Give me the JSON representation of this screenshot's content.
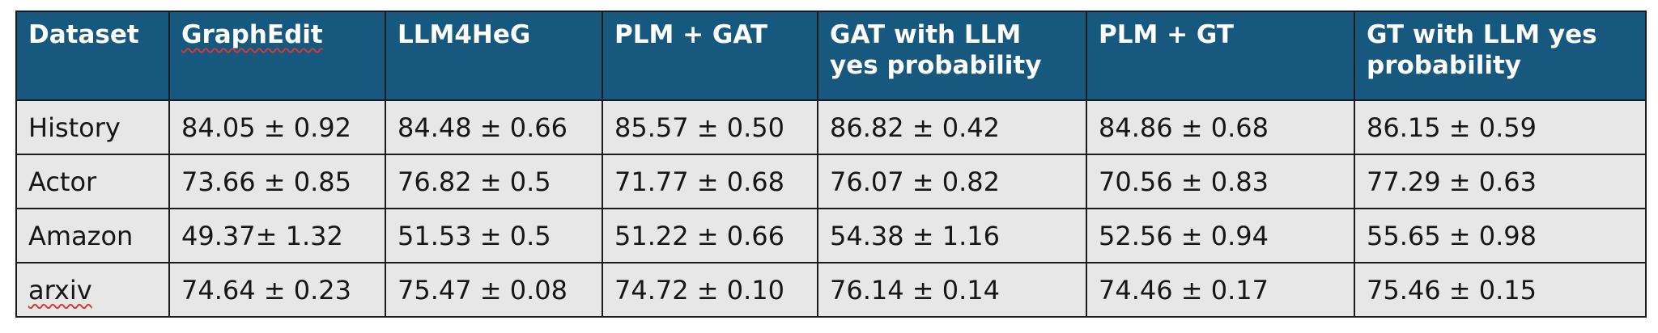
{
  "table": {
    "headers": [
      "Dataset",
      "GraphEdit",
      "LLM4HeG",
      "PLM + GAT",
      "GAT with LLM yes probability",
      "PLM + GT",
      "GT with LLM yes probability"
    ],
    "rows": [
      [
        "History",
        "84.05 ± 0.92",
        "84.48 ± 0.66",
        "85.57 ± 0.50",
        "86.82 ± 0.42",
        "84.86 ± 0.68",
        "86.15 ± 0.59"
      ],
      [
        "Actor",
        "73.66 ± 0.85",
        "76.82 ± 0.5",
        "71.77 ± 0.68",
        "76.07 ± 0.82",
        "70.56 ± 0.83",
        "77.29 ± 0.63"
      ],
      [
        "Amazon",
        "49.37± 1.32",
        "51.53 ± 0.5",
        "51.22 ± 0.66",
        "54.38 ± 1.16",
        "52.56 ± 0.94",
        "55.65 ± 0.98"
      ],
      [
        "arxiv",
        "74.64 ± 0.23",
        "75.47 ± 0.08",
        "74.72 ± 0.10",
        "76.14 ± 0.14",
        "74.46 ± 0.17",
        "75.46 ± 0.15"
      ]
    ]
  },
  "colors": {
    "header_bg": "#17587e",
    "header_text": "#ffffff",
    "cell_bg": "#e7e7e7",
    "cell_text": "#161616",
    "border": "#1c1c1c",
    "spellcheck_underline": "#d23a3a"
  }
}
